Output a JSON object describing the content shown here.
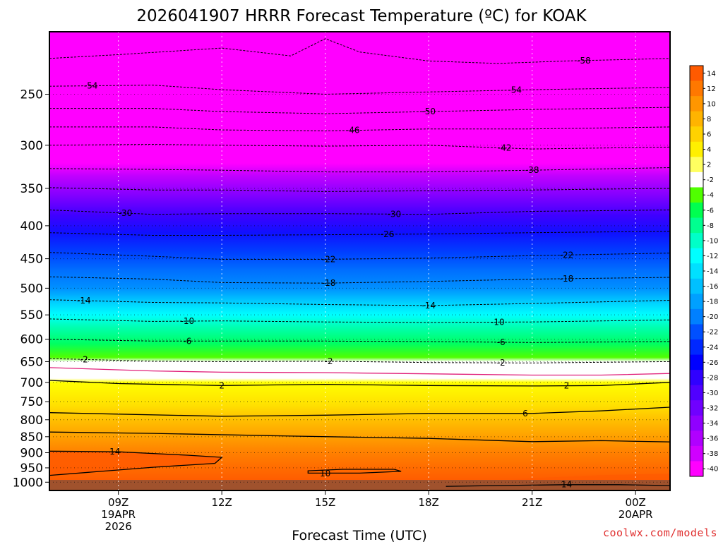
{
  "chart_data": {
    "type": "heatmap",
    "title": "2026041907 HRRR Forecast Temperature (ºC) for KOAK",
    "xlabel": "Forecast Time (UTC)",
    "ylabel": "",
    "credit": "coolwx.com/models",
    "x_ticks": [
      {
        "hour": 9,
        "lines": [
          "09Z",
          "19APR",
          "2026"
        ]
      },
      {
        "hour": 12,
        "lines": [
          "12Z"
        ]
      },
      {
        "hour": 15,
        "lines": [
          "15Z"
        ]
      },
      {
        "hour": 18,
        "lines": [
          "18Z"
        ]
      },
      {
        "hour": 21,
        "lines": [
          "21Z"
        ]
      },
      {
        "hour": 24,
        "lines": [
          "00Z",
          "20APR"
        ]
      }
    ],
    "xlim": [
      7.0,
      25.0
    ],
    "y_ticks": [
      250,
      300,
      350,
      400,
      450,
      500,
      550,
      600,
      650,
      700,
      750,
      800,
      850,
      900,
      950,
      1000
    ],
    "y_scale": "log-pressure",
    "ylim": [
      200,
      1030
    ],
    "colorbar_ticks": [
      "14",
      "12",
      "10",
      "8",
      "6",
      "4",
      "2",
      "-2",
      "-4",
      "-6",
      "-8",
      "-10",
      "-12",
      "-14",
      "-16",
      "-18",
      "-20",
      "-22",
      "-24",
      "-26",
      "-28",
      "-30",
      "-32",
      "-34",
      "-36",
      "-38",
      "-40"
    ],
    "colorbar_colors": [
      "#ff5a00",
      "#ff7800",
      "#ff9600",
      "#ffb400",
      "#ffd200",
      "#fff000",
      "#ffff60",
      "#ffffff",
      "#50ff00",
      "#00ff50",
      "#00ff90",
      "#00ffc8",
      "#00ffff",
      "#00e0ff",
      "#00c0ff",
      "#00a0ff",
      "#0080ff",
      "#0050ff",
      "#0028ff",
      "#0000ff",
      "#3000ff",
      "#5000ff",
      "#7000ff",
      "#9000ff",
      "#b000ff",
      "#d000ff",
      "#ff00ff"
    ],
    "isotherms": [
      {
        "temp": -58,
        "label": "-58",
        "series": [
          [
            7,
            220
          ],
          [
            9,
            217
          ],
          [
            12,
            212
          ],
          [
            14,
            218
          ],
          [
            15,
            205
          ],
          [
            16,
            215
          ],
          [
            18,
            222
          ],
          [
            20,
            224
          ],
          [
            22,
            222
          ],
          [
            25,
            220
          ]
        ],
        "labels": [
          22.5
        ]
      },
      {
        "temp": -54,
        "label": "-54",
        "series": [
          [
            7,
            243
          ],
          [
            10,
            242
          ],
          [
            12,
            246
          ],
          [
            15,
            250
          ],
          [
            18,
            248
          ],
          [
            21,
            246
          ],
          [
            25,
            244
          ]
        ],
        "labels": [
          8.2,
          20.5
        ]
      },
      {
        "temp": -50,
        "label": "-50",
        "series": [
          [
            7,
            263
          ],
          [
            10,
            263
          ],
          [
            12,
            266
          ],
          [
            15,
            268
          ],
          [
            18,
            266
          ],
          [
            21,
            264
          ],
          [
            25,
            262
          ]
        ],
        "labels": [
          18.0
        ]
      },
      {
        "temp": -46,
        "label": "-46",
        "series": [
          [
            7,
            281
          ],
          [
            10,
            281
          ],
          [
            12,
            284
          ],
          [
            15,
            285
          ],
          [
            18,
            283
          ],
          [
            21,
            283
          ],
          [
            25,
            281
          ]
        ],
        "labels": [
          15.8
        ]
      },
      {
        "temp": -42,
        "label": "-42",
        "series": [
          [
            7,
            300
          ],
          [
            10,
            299
          ],
          [
            12,
            300
          ],
          [
            15,
            301
          ],
          [
            18,
            300
          ],
          [
            21,
            304
          ],
          [
            25,
            302
          ]
        ],
        "labels": [
          20.2
        ]
      },
      {
        "temp": -38,
        "label": "-38",
        "series": [
          [
            7,
            326
          ],
          [
            10,
            327
          ],
          [
            12,
            328
          ],
          [
            15,
            330
          ],
          [
            18,
            330
          ],
          [
            21,
            328
          ],
          [
            25,
            325
          ]
        ],
        "labels": [
          21.0
        ]
      },
      {
        "temp": -34,
        "label": "-34",
        "series": [
          [
            7,
            349
          ],
          [
            10,
            352
          ],
          [
            12,
            352
          ],
          [
            15,
            354
          ],
          [
            18,
            353
          ],
          [
            21,
            352
          ],
          [
            25,
            350
          ]
        ],
        "labels": []
      },
      {
        "temp": -30,
        "label": "-30",
        "series": [
          [
            7,
            378
          ],
          [
            10,
            384
          ],
          [
            12,
            383
          ],
          [
            15,
            383
          ],
          [
            18,
            384
          ],
          [
            21,
            380
          ],
          [
            25,
            378
          ]
        ],
        "labels": [
          9.2,
          17.0
        ]
      },
      {
        "temp": -26,
        "label": "-26",
        "series": [
          [
            7,
            410
          ],
          [
            10,
            414
          ],
          [
            12,
            414
          ],
          [
            15,
            413
          ],
          [
            18,
            412
          ],
          [
            21,
            410
          ],
          [
            25,
            408
          ]
        ],
        "labels": [
          16.8
        ]
      },
      {
        "temp": -22,
        "label": "-22",
        "series": [
          [
            7,
            440
          ],
          [
            10,
            446
          ],
          [
            12,
            451
          ],
          [
            15,
            451
          ],
          [
            18,
            449
          ],
          [
            21,
            445
          ],
          [
            25,
            441
          ]
        ],
        "labels": [
          15.1,
          22.0
        ]
      },
      {
        "temp": -18,
        "label": "-18",
        "series": [
          [
            7,
            480
          ],
          [
            10,
            484
          ],
          [
            12,
            490
          ],
          [
            15,
            491
          ],
          [
            18,
            488
          ],
          [
            21,
            484
          ],
          [
            25,
            481
          ]
        ],
        "labels": [
          15.1,
          22.0
        ]
      },
      {
        "temp": -14,
        "label": "-14",
        "series": [
          [
            7,
            521
          ],
          [
            10,
            526
          ],
          [
            12,
            527
          ],
          [
            15,
            530
          ],
          [
            18,
            532
          ],
          [
            21,
            528
          ],
          [
            25,
            522
          ]
        ],
        "labels": [
          8.0,
          18.0
        ]
      },
      {
        "temp": -10,
        "label": "-10",
        "series": [
          [
            7,
            558
          ],
          [
            10,
            563
          ],
          [
            12,
            562
          ],
          [
            15,
            564
          ],
          [
            18,
            565
          ],
          [
            21,
            564
          ],
          [
            25,
            560
          ]
        ],
        "labels": [
          11.0,
          20.0
        ]
      },
      {
        "temp": -6,
        "label": "-6",
        "series": [
          [
            7,
            600
          ],
          [
            10,
            604
          ],
          [
            12,
            604
          ],
          [
            15,
            604
          ],
          [
            18,
            605
          ],
          [
            21,
            607
          ],
          [
            25,
            605
          ]
        ],
        "labels": [
          11.0,
          20.1
        ]
      },
      {
        "temp": -2,
        "label": "-2",
        "series": [
          [
            7,
            643
          ],
          [
            10,
            649
          ],
          [
            12,
            650
          ],
          [
            15,
            649
          ],
          [
            18,
            652
          ],
          [
            21,
            653
          ],
          [
            25,
            650
          ]
        ],
        "labels": [
          8.0,
          15.1,
          20.1
        ]
      },
      {
        "temp": 0,
        "label": "",
        "color": "#e0207a",
        "solid": true,
        "series": [
          [
            7,
            664
          ],
          [
            10,
            672
          ],
          [
            12,
            675
          ],
          [
            15,
            676
          ],
          [
            18,
            679
          ],
          [
            21,
            682
          ],
          [
            23,
            682
          ],
          [
            25,
            678
          ]
        ],
        "labels": []
      },
      {
        "temp": 2,
        "label": "2",
        "solid": true,
        "series": [
          [
            7,
            695
          ],
          [
            9,
            703
          ],
          [
            12,
            708
          ],
          [
            15,
            705
          ],
          [
            18,
            708
          ],
          [
            21,
            709
          ],
          [
            23,
            708
          ],
          [
            25,
            700
          ]
        ],
        "labels": [
          12.0,
          22.0
        ]
      },
      {
        "temp": 6,
        "label": "6",
        "solid": true,
        "series": [
          [
            7,
            780
          ],
          [
            9,
            784
          ],
          [
            12,
            790
          ],
          [
            15,
            787
          ],
          [
            18,
            782
          ],
          [
            21,
            782
          ],
          [
            23,
            775
          ],
          [
            25,
            765
          ]
        ],
        "labels": [
          20.8
        ]
      },
      {
        "temp": 10,
        "label": "",
        "solid": true,
        "series": [
          [
            7,
            836
          ],
          [
            10,
            840
          ],
          [
            14,
            848
          ],
          [
            18,
            855
          ],
          [
            21,
            865
          ],
          [
            23,
            862
          ],
          [
            25,
            866
          ]
        ],
        "labels": []
      },
      {
        "temp": 14,
        "label": "14",
        "solid": true,
        "series": [
          [
            7,
            895
          ],
          [
            9,
            897
          ],
          [
            11,
            908
          ],
          [
            12.0,
            915
          ],
          [
            11.8,
            935
          ],
          [
            10,
            948
          ],
          [
            7,
            976
          ]
        ],
        "labels": [
          8.9
        ]
      }
    ],
    "closed_contours": [
      {
        "label": "10",
        "points": [
          [
            14.5,
            960
          ],
          [
            15.5,
            955
          ],
          [
            17.0,
            955
          ],
          [
            17.2,
            962
          ],
          [
            16.0,
            968
          ],
          [
            14.5,
            968
          ]
        ],
        "label_at": [
          15.0,
          970
        ]
      },
      {
        "label": "14",
        "points": [
          [
            18.5,
            1015
          ],
          [
            20,
            1012
          ],
          [
            22,
            1009
          ],
          [
            23.5,
            1009
          ],
          [
            25,
            1012
          ]
        ],
        "label_at": [
          22.0,
          1008
        ],
        "open": true
      }
    ]
  }
}
